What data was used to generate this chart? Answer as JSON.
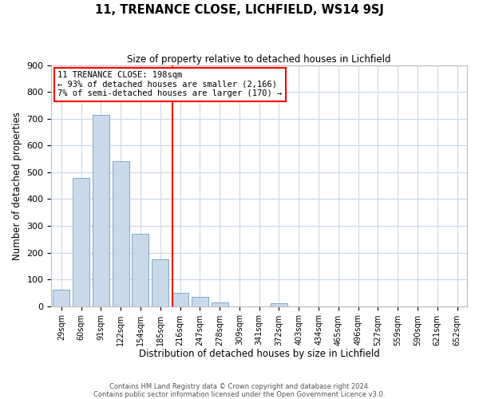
{
  "title": "11, TRENANCE CLOSE, LICHFIELD, WS14 9SJ",
  "subtitle": "Size of property relative to detached houses in Lichfield",
  "xlabel": "Distribution of detached houses by size in Lichfield",
  "ylabel": "Number of detached properties",
  "bar_color": "#c9d9ea",
  "bar_edge_color": "#7aaac8",
  "categories": [
    "29sqm",
    "60sqm",
    "91sqm",
    "122sqm",
    "154sqm",
    "185sqm",
    "216sqm",
    "247sqm",
    "278sqm",
    "309sqm",
    "341sqm",
    "372sqm",
    "403sqm",
    "434sqm",
    "465sqm",
    "496sqm",
    "527sqm",
    "559sqm",
    "590sqm",
    "621sqm",
    "652sqm"
  ],
  "values": [
    60,
    480,
    715,
    540,
    270,
    175,
    50,
    35,
    15,
    0,
    0,
    10,
    0,
    0,
    0,
    0,
    0,
    0,
    0,
    0,
    0
  ],
  "ylim": [
    0,
    900
  ],
  "yticks": [
    0,
    100,
    200,
    300,
    400,
    500,
    600,
    700,
    800,
    900
  ],
  "annotation_line1": "11 TRENANCE CLOSE: 198sqm",
  "annotation_line2": "← 93% of detached houses are smaller (2,166)",
  "annotation_line3": "7% of semi-detached houses are larger (170) →",
  "vline_x": 5.61,
  "footer1": "Contains HM Land Registry data © Crown copyright and database right 2024.",
  "footer2": "Contains public sector information licensed under the Open Government Licence v3.0.",
  "background_color": "#ffffff",
  "grid_color": "#c8d8e8"
}
